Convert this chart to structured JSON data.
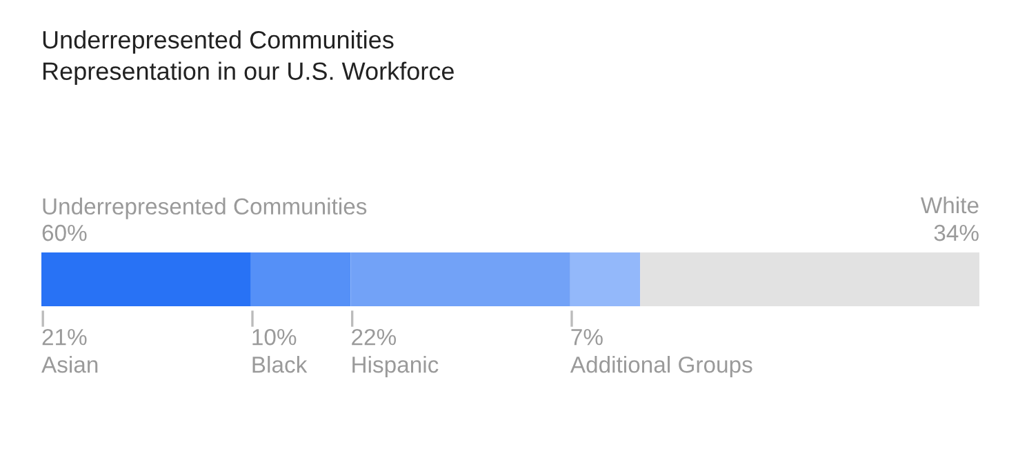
{
  "chart_data": {
    "type": "bar",
    "orientation": "horizontal",
    "stacked": true,
    "title": "Underrepresented Communities\nRepresentation in our U.S. Workforce",
    "categories": [
      null
    ],
    "series": [
      {
        "name": "Asian",
        "color": "#2872f5",
        "values": [
          21
        ],
        "value_labels": [
          "21%"
        ]
      },
      {
        "name": "Black",
        "color": "#5590f7",
        "values": [
          10
        ],
        "value_labels": [
          "10%"
        ]
      },
      {
        "name": "Hispanic",
        "color": "#72a2f7",
        "values": [
          22
        ],
        "value_labels": [
          "22%"
        ]
      },
      {
        "name": "Additional Groups",
        "color": "#93b8fa",
        "values": [
          7
        ],
        "value_labels": [
          "7%"
        ]
      },
      {
        "name": "White",
        "color": "#e2e2e2",
        "values": [
          34
        ],
        "value_labels": [
          "34%"
        ]
      }
    ],
    "annotations": [
      "Underrepresented Communities",
      "60%"
    ],
    "legend": false
  }
}
